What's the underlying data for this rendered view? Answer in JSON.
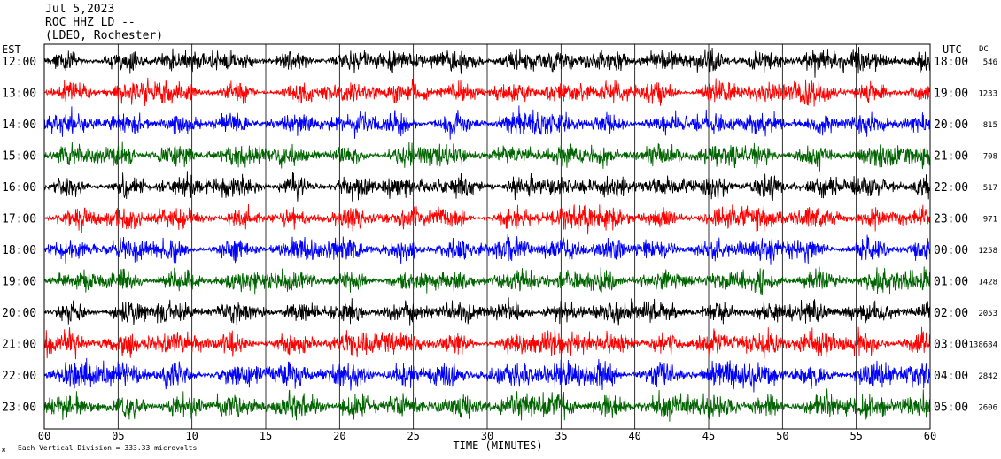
{
  "header": {
    "date": "Jul 5,2023",
    "station": "ROC HHZ LD --",
    "network": "(LDEO, Rochester)"
  },
  "chart_data": {
    "type": "line",
    "title": "",
    "left_axis_label": "EST",
    "right_axis_label": "UTC",
    "dc_label": "DC",
    "xlabel": "TIME (MINUTES)",
    "xlim": [
      0,
      60
    ],
    "x_ticks": [
      "00",
      "05",
      "10",
      "15",
      "20",
      "25",
      "30",
      "35",
      "40",
      "45",
      "50",
      "55",
      "60"
    ],
    "rows": [
      {
        "est": "12:00",
        "utc": "18:00",
        "dc": "546",
        "color": "#000000"
      },
      {
        "est": "13:00",
        "utc": "19:00",
        "dc": "1233",
        "color": "#ff0000"
      },
      {
        "est": "14:00",
        "utc": "20:00",
        "dc": "815",
        "color": "#0000ff"
      },
      {
        "est": "15:00",
        "utc": "21:00",
        "dc": "708",
        "color": "#006400"
      },
      {
        "est": "16:00",
        "utc": "22:00",
        "dc": "517",
        "color": "#000000"
      },
      {
        "est": "17:00",
        "utc": "23:00",
        "dc": "971",
        "color": "#ff0000"
      },
      {
        "est": "18:00",
        "utc": "00:00",
        "dc": "1258",
        "color": "#0000ff"
      },
      {
        "est": "19:00",
        "utc": "01:00",
        "dc": "1428",
        "color": "#006400"
      },
      {
        "est": "20:00",
        "utc": "02:00",
        "dc": "2053",
        "color": "#000000"
      },
      {
        "est": "21:00",
        "utc": "03:00",
        "dc": "-138684",
        "color": "#ff0000"
      },
      {
        "est": "22:00",
        "utc": "04:00",
        "dc": "2842",
        "color": "#0000ff"
      },
      {
        "est": "23:00",
        "utc": "05:00",
        "dc": "2606",
        "color": "#006400"
      }
    ],
    "footer_note": "Each Vertical Division =  333.33 microvolts",
    "corner_mark": "ж"
  }
}
